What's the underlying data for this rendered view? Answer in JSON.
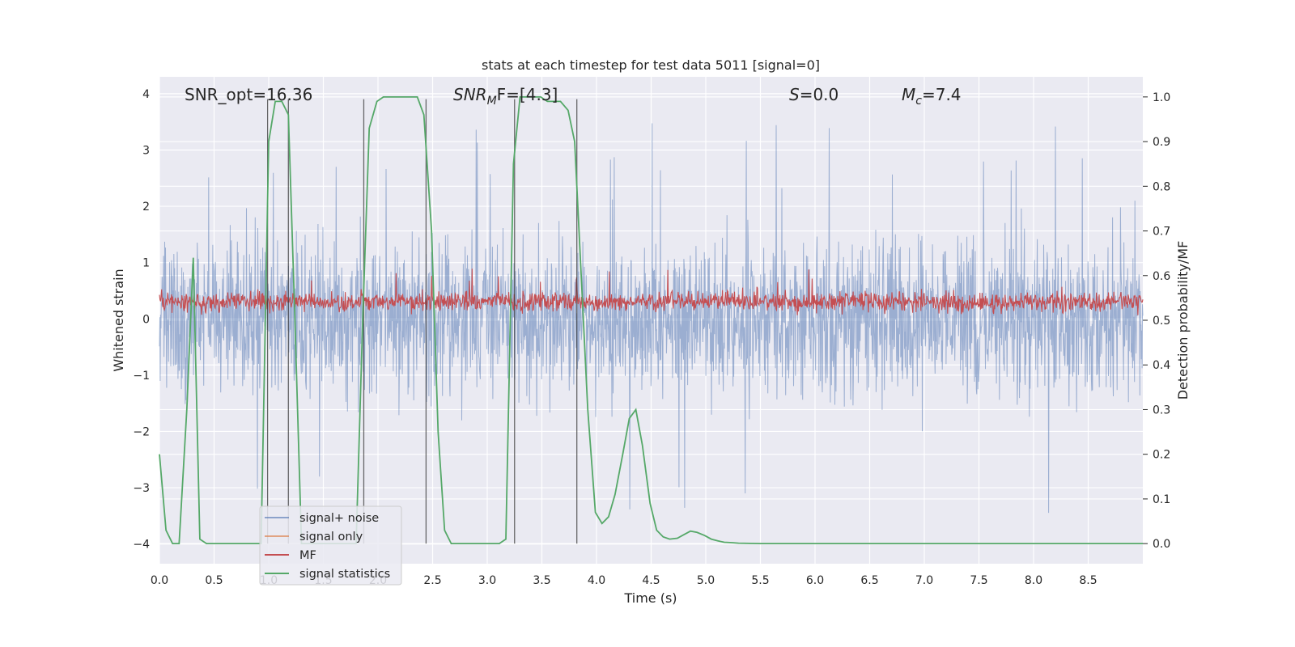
{
  "chart_data": {
    "type": "line",
    "title": "stats at each timestep for test data 5011 [signal=0]",
    "xlabel": "Time (s)",
    "ylabel_left": "Whitened strain",
    "ylabel_right": "Detection probability/MF",
    "xlim": [
      0,
      9
    ],
    "ylim_left": [
      -4.35,
      4.3
    ],
    "ylim_right": [
      -0.045,
      1.045
    ],
    "x_ticks": [
      "0.0",
      "0.5",
      "1.0",
      "1.5",
      "2.0",
      "2.5",
      "3.0",
      "3.5",
      "4.0",
      "4.5",
      "5.0",
      "5.5",
      "6.0",
      "6.5",
      "7.0",
      "7.5",
      "8.0",
      "8.5"
    ],
    "y_ticks_left": [
      "4",
      "3",
      "2",
      "1",
      "0",
      "−1",
      "−2",
      "−3",
      "−4"
    ],
    "y_ticks_right": [
      "1.0",
      "0.9",
      "0.8",
      "0.7",
      "0.6",
      "0.5",
      "0.4",
      "0.3",
      "0.2",
      "0.1",
      "0.0"
    ],
    "grid": true,
    "legend_position": "lower-left",
    "annotations": {
      "snr_opt": "SNR_opt=16.36",
      "snr_mf_main": "SNR",
      "snr_mf_sub": "M",
      "snr_mf_rest": "F=[4.3]",
      "s_main": "S",
      "s_rest": "=0.0",
      "mc_main": "M",
      "mc_sub": "c",
      "mc_rest": "=7.4"
    },
    "series": [
      {
        "name": "signal+ noise",
        "color": "#4c72b0",
        "axis": "left",
        "noise_envelope": {
          "mean": 0.0,
          "typical_abs_max": 2.4,
          "peak_abs_max": 3.5
        }
      },
      {
        "name": "signal only",
        "color": "#dd8452",
        "axis": "left",
        "values": []
      },
      {
        "name": "MF",
        "color": "#c44e52",
        "axis": "left",
        "band": {
          "mean": 0.3,
          "lower": 0.05,
          "upper": 0.65,
          "max": 1.0
        }
      },
      {
        "name": "signal statistics",
        "color": "#55a868",
        "axis": "right",
        "x": [
          0.0,
          0.06,
          0.12,
          0.18,
          0.25,
          0.31,
          0.37,
          0.43,
          0.5,
          0.56,
          0.62,
          0.68,
          0.75,
          0.81,
          0.87,
          0.93,
          1.0,
          1.06,
          1.12,
          1.18,
          1.24,
          1.3,
          1.36,
          1.42,
          1.49,
          1.55,
          1.61,
          1.67,
          1.74,
          1.8,
          1.86,
          1.92,
          1.99,
          2.05,
          2.11,
          2.17,
          2.24,
          2.3,
          2.36,
          2.42,
          2.49,
          2.55,
          2.61,
          2.67,
          2.74,
          2.8,
          2.86,
          2.92,
          2.99,
          3.05,
          3.11,
          3.17,
          3.24,
          3.3,
          3.36,
          3.42,
          3.49,
          3.55,
          3.61,
          3.67,
          3.74,
          3.8,
          3.86,
          3.92,
          3.99,
          4.05,
          4.11,
          4.17,
          4.24,
          4.3,
          4.36,
          4.42,
          4.49,
          4.55,
          4.61,
          4.67,
          4.74,
          4.8,
          4.86,
          4.92,
          4.99,
          5.05,
          5.11,
          5.17,
          5.24,
          5.3,
          5.5,
          6.0,
          7.0,
          8.0,
          9.0
        ],
        "values": [
          0.2,
          0.03,
          0.0,
          0.0,
          0.3,
          0.64,
          0.01,
          0.0,
          0.0,
          0.0,
          0.0,
          0.0,
          0.0,
          0.0,
          0.0,
          0.0,
          0.9,
          0.99,
          0.99,
          0.96,
          0.5,
          0.0,
          0.0,
          0.0,
          0.0,
          0.0,
          0.0,
          0.0,
          0.0,
          0.0,
          0.5,
          0.93,
          0.99,
          1.0,
          1.0,
          1.0,
          1.0,
          1.0,
          1.0,
          0.96,
          0.7,
          0.25,
          0.03,
          0.0,
          0.0,
          0.0,
          0.0,
          0.0,
          0.0,
          0.0,
          0.0,
          0.01,
          0.85,
          1.0,
          1.0,
          1.0,
          1.0,
          0.99,
          0.99,
          0.99,
          0.97,
          0.9,
          0.6,
          0.3,
          0.07,
          0.045,
          0.06,
          0.11,
          0.2,
          0.28,
          0.3,
          0.22,
          0.09,
          0.03,
          0.015,
          0.01,
          0.012,
          0.02,
          0.028,
          0.025,
          0.018,
          0.01,
          0.006,
          0.003,
          0.002,
          0.001,
          0.0,
          0.0,
          0.0,
          0.0,
          0.0
        ]
      }
    ],
    "vertical_lines_x": [
      0.99,
      1.18,
      1.87,
      2.44,
      3.25,
      3.82
    ]
  }
}
